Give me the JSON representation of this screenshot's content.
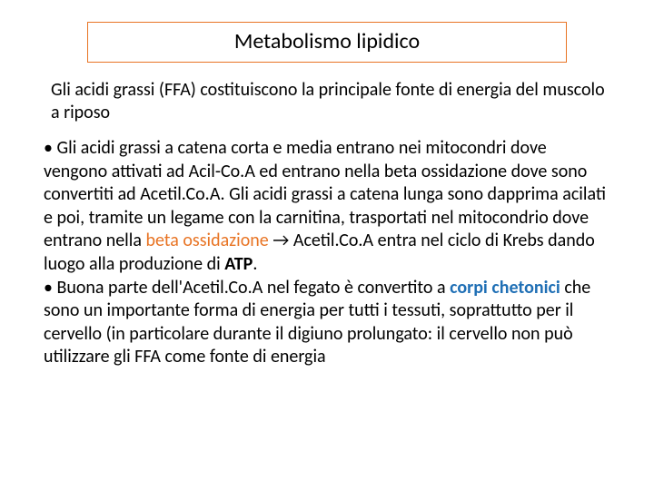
{
  "colors": {
    "title_border": "#e87424",
    "text": "#000000",
    "highlight_orange": "#e87424",
    "highlight_blue": "#1f6fb5",
    "background": "#ffffff"
  },
  "typography": {
    "title_fontsize": 24,
    "body_fontsize": 20,
    "font_family": "Calibri, Arial, sans-serif"
  },
  "title": "Metabolismo lipidico",
  "intro": "Gli acidi grassi (FFA) costituiscono la principale fonte di energia del muscolo a riposo",
  "bullet1_pre": "• Gli acidi grassi a catena corta e media entrano nei mitocondri dove vengono attivati ad Acil-Co.A ed entrano nella beta ossidazione dove sono convertiti ad Acetil.Co.A. Gli acidi grassi a catena lunga sono dapprima acilati e poi, tramite un legame con la carnitina, trasportati nel mitocondrio dove entrano nella ",
  "hl_beta": "beta ossidazione",
  "arrow": " → ",
  "bullet1_mid": "Acetil.Co.A entra nel ciclo di Krebs dando luogo alla produzione di ",
  "atp": "ATP",
  "period": ".",
  "bullet2_pre": "• Buona parte dell'Acetil.Co.A nel fegato è convertito a ",
  "hl_corpi": "corpi chetonici",
  "bullet2_post": " che sono un importante forma di energia per tutti i tessuti, soprattutto per il cervello (in particolare durante il digiuno prolungato: il cervello non può utilizzare gli FFA come fonte di energia"
}
